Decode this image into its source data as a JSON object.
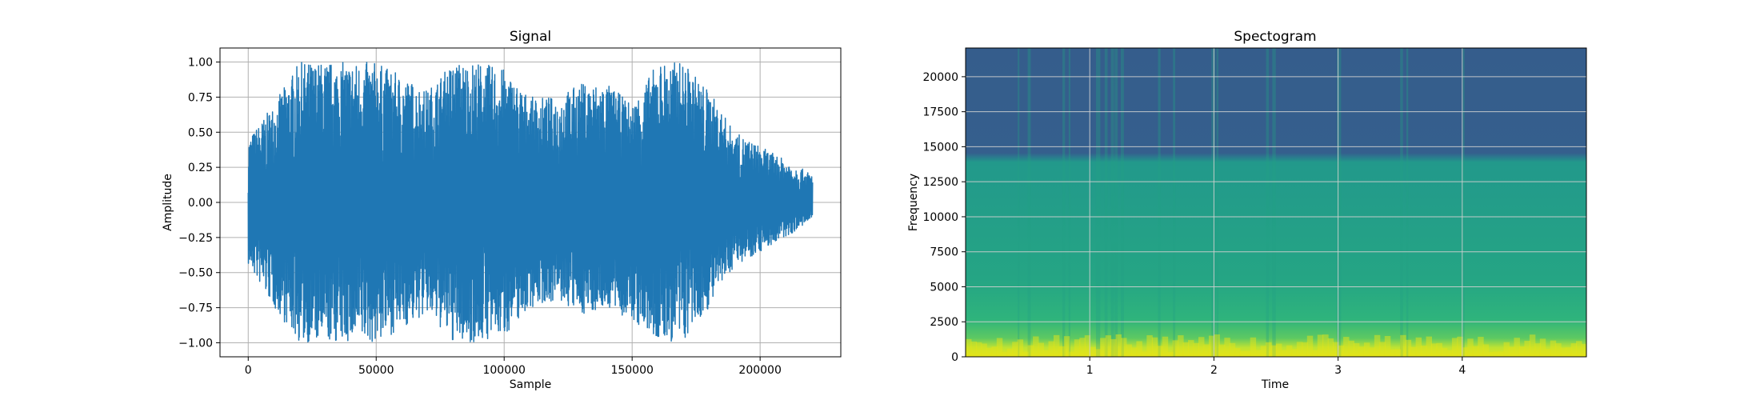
{
  "chart_data": [
    {
      "type": "line",
      "title": "Signal",
      "xlabel": "Sample",
      "ylabel": "Amplitude",
      "xlim": [
        -11025,
        231525
      ],
      "ylim": [
        -1.1,
        1.1
      ],
      "x_ticks": [
        0,
        50000,
        100000,
        150000,
        200000
      ],
      "x_tick_labels": [
        "0",
        "50000",
        "100000",
        "150000",
        "200000"
      ],
      "y_ticks": [
        1.0,
        0.75,
        0.5,
        0.25,
        0.0,
        -0.25,
        -0.5,
        -0.75,
        -1.0
      ],
      "y_tick_labels": [
        "1.00",
        "0.75",
        "0.50",
        "0.25",
        "0.00",
        "−0.25",
        "−0.50",
        "−0.75",
        "−1.00"
      ],
      "grid": true,
      "color": "#1f77b4",
      "series": [
        {
          "x": [
            0,
            10000,
            20000,
            30000,
            40000,
            50000,
            60000,
            70000,
            80000,
            90000,
            100000,
            110000,
            120000,
            130000,
            140000,
            150000,
            160000,
            170000,
            180000,
            190000,
            200000,
            210000,
            220500
          ],
          "envelope_max": [
            0.45,
            0.7,
            1.0,
            1.0,
            1.0,
            1.0,
            0.9,
            0.8,
            1.0,
            1.0,
            0.95,
            0.75,
            0.75,
            0.85,
            0.85,
            0.7,
            1.0,
            1.0,
            0.8,
            0.5,
            0.4,
            0.3,
            0.2
          ],
          "envelope_min": [
            -0.45,
            -0.75,
            -1.0,
            -1.0,
            -1.0,
            -1.0,
            -0.9,
            -0.8,
            -1.0,
            -1.0,
            -0.95,
            -0.75,
            -0.7,
            -0.8,
            -0.75,
            -0.85,
            -1.0,
            -1.0,
            -0.75,
            -0.45,
            -0.35,
            -0.25,
            -0.12
          ]
        }
      ]
    },
    {
      "type": "heatmap",
      "title": "Spectogram",
      "xlabel": "Time",
      "ylabel": "Frequency",
      "xlim": [
        0.0,
        5.0
      ],
      "ylim": [
        0,
        22050
      ],
      "x_ticks": [
        1,
        2,
        3,
        4
      ],
      "x_tick_labels": [
        "1",
        "2",
        "3",
        "4"
      ],
      "y_ticks": [
        0,
        2500,
        5000,
        7500,
        10000,
        12500,
        15000,
        17500,
        20000
      ],
      "y_tick_labels": [
        "0",
        "2500",
        "5000",
        "7500",
        "10000",
        "12500",
        "15000",
        "17500",
        "20000"
      ],
      "grid": true,
      "colormap": "viridis",
      "bands": [
        {
          "freq_range": [
            0,
            1200
          ],
          "level": "high",
          "color": "#d5e21a"
        },
        {
          "freq_range": [
            1200,
            4500
          ],
          "level": "medium-high",
          "color": "#2fb47c"
        },
        {
          "freq_range": [
            4500,
            14000
          ],
          "level": "medium",
          "color": "#27a580"
        },
        {
          "freq_range": [
            14000,
            22050
          ],
          "level": "low",
          "color": "#355f8d"
        }
      ]
    }
  ]
}
